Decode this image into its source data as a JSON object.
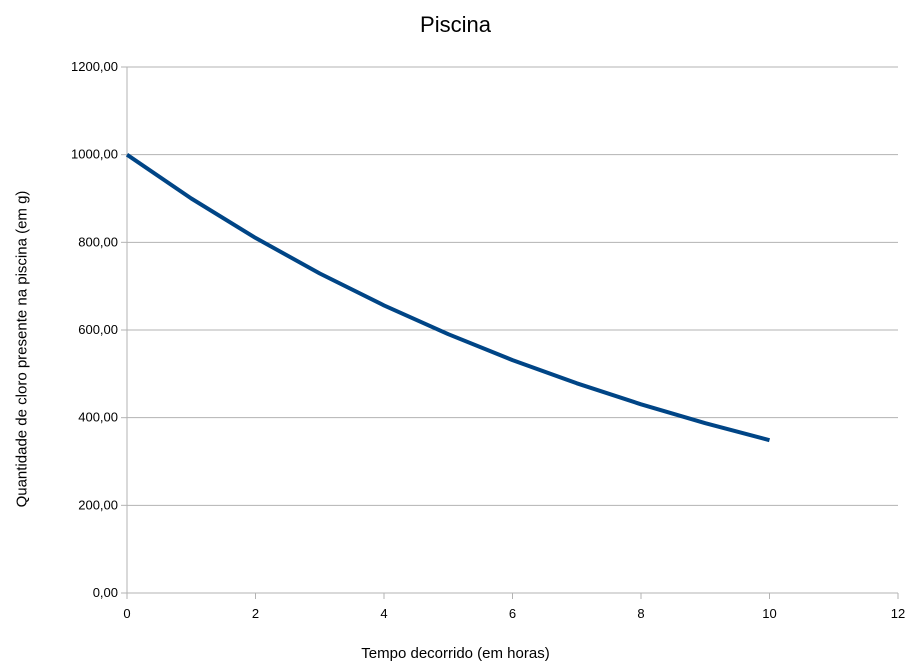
{
  "chart_data": {
    "type": "line",
    "title": "Piscina",
    "xlabel": "Tempo decorrido (em horas)",
    "ylabel": "Quantidade de cloro presente na piscina (em g)",
    "xlim": [
      0,
      12
    ],
    "ylim": [
      0,
      1200
    ],
    "x_ticks": [
      "0",
      "2",
      "4",
      "6",
      "8",
      "10",
      "12"
    ],
    "y_ticks": [
      "0,00",
      "200,00",
      "400,00",
      "600,00",
      "800,00",
      "1000,00",
      "1200,00"
    ],
    "grid": true,
    "legend": "none",
    "line_color": "#004586",
    "series": [
      {
        "x": [
          0,
          1,
          2,
          3,
          4,
          5,
          6,
          7,
          8,
          9,
          10
        ],
        "values": [
          1000,
          900,
          810,
          729,
          656.1,
          590.5,
          531.4,
          478.3,
          430.5,
          387.4,
          348.7
        ]
      }
    ]
  }
}
